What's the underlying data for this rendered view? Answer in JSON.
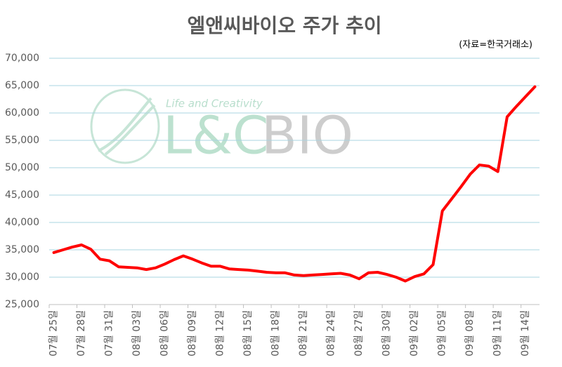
{
  "chart_data": {
    "type": "line",
    "title": "엘앤씨바이오 주가 추이",
    "subtitle": "(자료=한국거래소)",
    "logo": {
      "tagline": "Life and Creativity",
      "brand": "L&C",
      "brand2": "BIO"
    },
    "categories": [
      "07월 25일",
      null,
      null,
      "07월 28일",
      null,
      null,
      "07월 31일",
      null,
      null,
      "08월 03일",
      null,
      null,
      "08월 06일",
      null,
      null,
      "08월 09일",
      null,
      null,
      "08월 12일",
      null,
      null,
      "08월 15일",
      null,
      null,
      "08월 18일",
      null,
      null,
      "08월 21일",
      null,
      null,
      "08월 24일",
      null,
      null,
      "08월 27일",
      null,
      null,
      "08월 30일",
      null,
      null,
      "09월 02일",
      null,
      null,
      "09월 05일",
      null,
      null,
      "09월 08일",
      null,
      null,
      "09월 11일",
      null,
      null,
      "09월 14일",
      null
    ],
    "series": [
      {
        "name": "주가",
        "color": "#ff0000",
        "values": [
          34500,
          35000,
          35500,
          35900,
          35100,
          33300,
          33000,
          31900,
          31800,
          31700,
          31400,
          31700,
          32400,
          33200,
          33900,
          33300,
          32600,
          32000,
          32000,
          31500,
          31400,
          31300,
          31100,
          30900,
          30800,
          30800,
          30400,
          30300,
          30400,
          30500,
          30600,
          30700,
          30400,
          29700,
          30800,
          30900,
          30500,
          30000,
          29300,
          30100,
          30600,
          32300,
          42100,
          44300,
          46500,
          48800,
          50500,
          50300,
          49300,
          59300,
          61200,
          63000,
          64800
        ]
      }
    ],
    "ylim": [
      25000,
      70000
    ],
    "yticks": [
      {
        "value": 25000,
        "label": "25,000"
      },
      {
        "value": 30000,
        "label": "30,000"
      },
      {
        "value": 35000,
        "label": "35,000"
      },
      {
        "value": 40000,
        "label": "40,000"
      },
      {
        "value": 45000,
        "label": "45,000"
      },
      {
        "value": 50000,
        "label": "50,000"
      },
      {
        "value": 55000,
        "label": "55,000"
      },
      {
        "value": 60000,
        "label": "60,000"
      },
      {
        "value": 65000,
        "label": "65,000"
      },
      {
        "value": 70000,
        "label": "70,000"
      }
    ],
    "grid": true
  }
}
